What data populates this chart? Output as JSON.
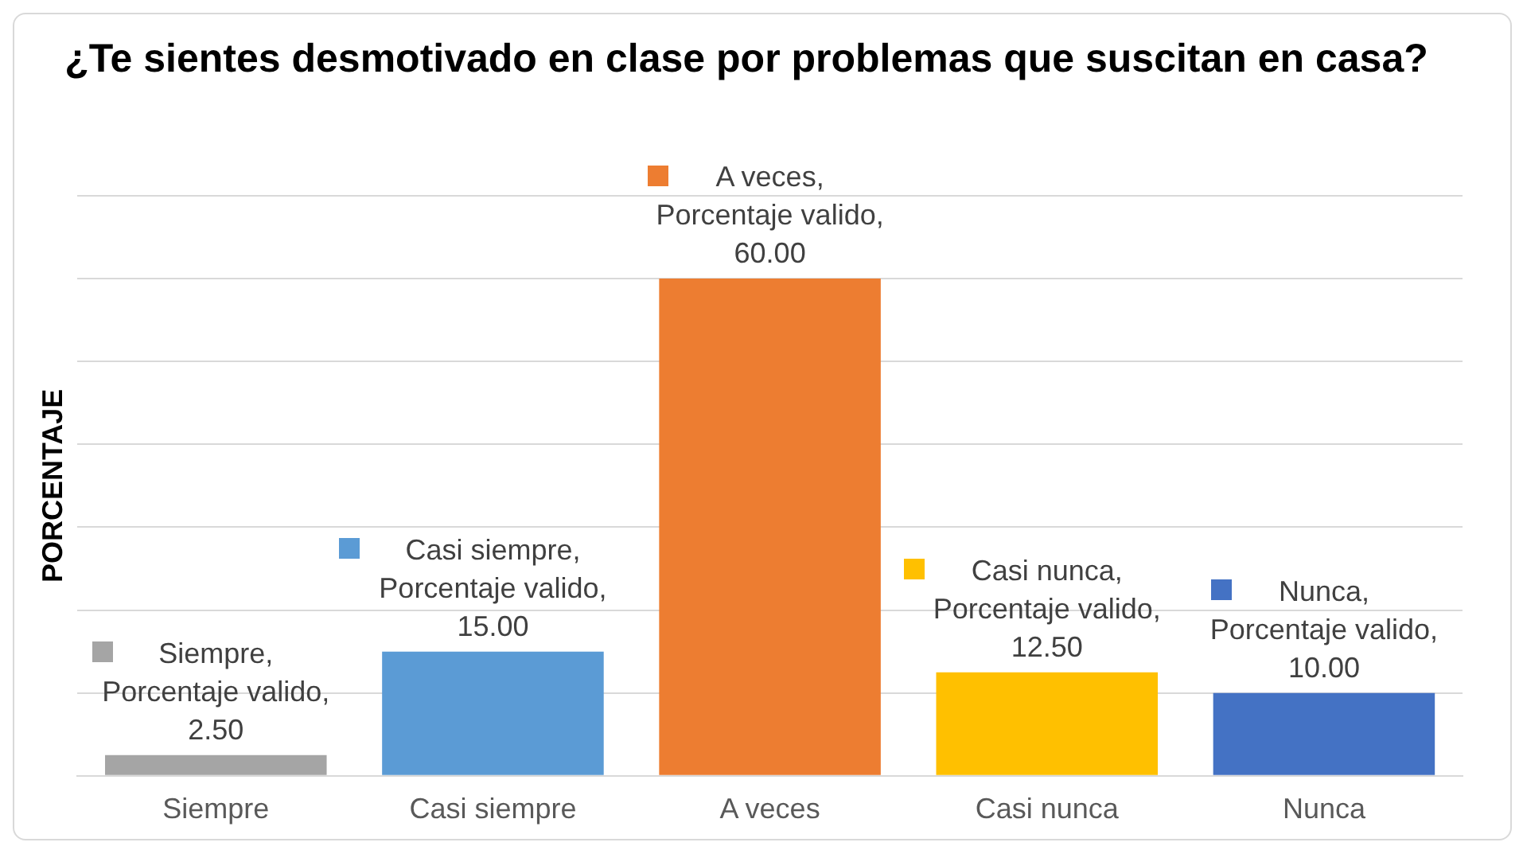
{
  "chart_data": {
    "type": "bar",
    "title": "¿Te sientes desmotivado en clase por problemas que suscitan en casa?",
    "ylabel": "PORCENTAJE",
    "categories": [
      "Siempre",
      "Casi siempre",
      "A veces",
      "Casi nunca",
      "Nunca"
    ],
    "series": [
      {
        "colors": [
          "#a5a5a5",
          "#5b9bd5",
          "#ed7d31",
          "#ffc000",
          "#4472c4"
        ],
        "values": [
          2.5,
          15,
          60,
          12.5,
          10
        ],
        "value_labels": [
          "Siempre, Porcentaje valido, 2.50",
          "Casi siempre, Porcentaje valido, 15.00",
          "A veces, Porcentaje valido, 60.00",
          "Casi nunca, Porcentaje valido, 12.50",
          "Nunca, Porcentaje valido, 10.00"
        ]
      }
    ],
    "ylim": [
      0,
      70
    ],
    "yticks": [
      {
        "value": 0,
        "label": null
      },
      {
        "value": 10,
        "label": null
      },
      {
        "value": 20,
        "label": null
      },
      {
        "value": 30,
        "label": null
      },
      {
        "value": 40,
        "label": null
      },
      {
        "value": 50,
        "label": null
      },
      {
        "value": 60,
        "label": null
      },
      {
        "value": 70,
        "label": null
      }
    ],
    "tick_labels": "x",
    "grid": "y",
    "legend": false
  }
}
